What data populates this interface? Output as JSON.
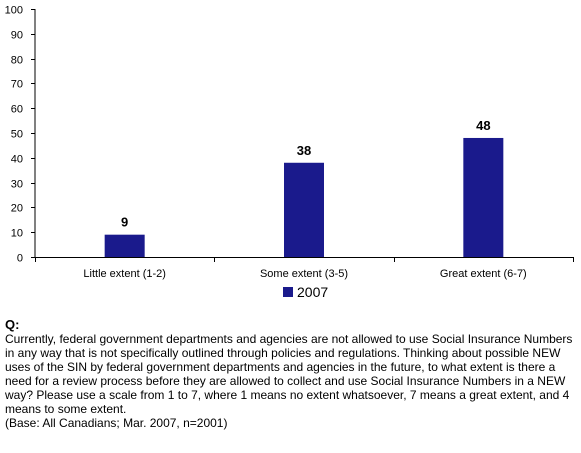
{
  "chart_data": {
    "type": "bar",
    "categories": [
      "Little extent (1-2)",
      "Some extent (3-5)",
      "Great extent (6-7)"
    ],
    "series": [
      {
        "name": "2007",
        "values": [
          9,
          38,
          48
        ],
        "color": "#1a1a8c"
      }
    ],
    "data_labels": [
      "9",
      "38",
      "48"
    ],
    "ylim": [
      0,
      100
    ],
    "yticks": [
      0,
      10,
      20,
      30,
      40,
      50,
      60,
      70,
      80,
      90,
      100
    ],
    "grid": false,
    "legend_position": "bottom-center"
  },
  "legend": {
    "label": "2007"
  },
  "footnote": {
    "q_label": "Q:",
    "question": "Currently, federal government departments and agencies are not allowed to use Social Insurance Numbers in any way that is not specifically outlined through policies and regulations. Thinking about possible NEW uses of the SIN by federal government departments and agencies in the future, to what extent is there a need for a review process before they are allowed to collect and use Social Insurance Numbers in a NEW way? Please use a scale from 1 to 7, where 1 means no extent whatsoever, 7 means a great extent, and 4 means to some extent.",
    "base": "(Base: All Canadians; Mar. 2007, n=2001)"
  }
}
